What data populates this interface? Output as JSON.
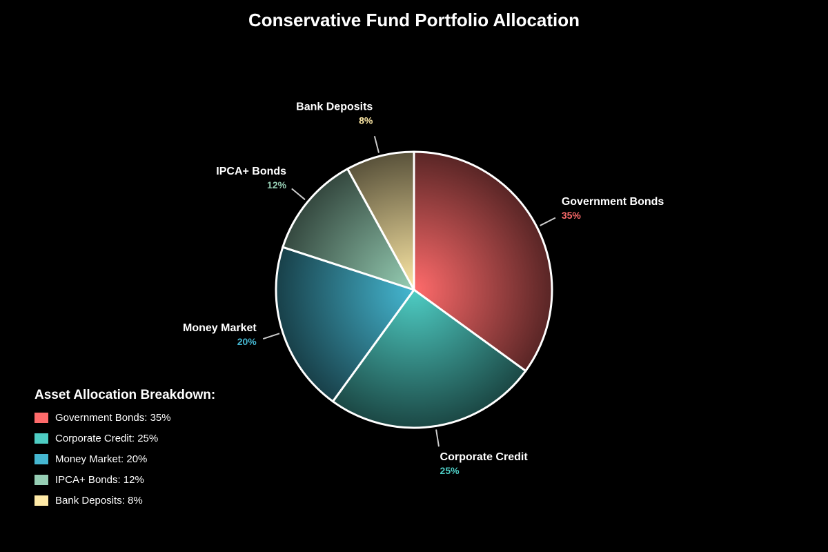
{
  "title": "Conservative Fund Portfolio Allocation",
  "legend": {
    "title": "Asset Allocation Breakdown:",
    "items": [
      {
        "label": "Government Bonds: 35%",
        "color": "#FF6B6B"
      },
      {
        "label": "Corporate Credit: 25%",
        "color": "#4ECDC4"
      },
      {
        "label": "Money Market: 20%",
        "color": "#45B7D1"
      },
      {
        "label": "IPCA+ Bonds: 12%",
        "color": "#96CEB4"
      },
      {
        "label": "Bank Deposits: 8%",
        "color": "#FFEAA7"
      }
    ]
  },
  "chart_data": {
    "type": "pie",
    "title": "Conservative Fund Portfolio Allocation",
    "categories": [
      "Government Bonds",
      "Corporate Credit",
      "Money Market",
      "IPCA+ Bonds",
      "Bank Deposits"
    ],
    "values": [
      35,
      25,
      20,
      12,
      8
    ],
    "labels": [
      "35%",
      "25%",
      "20%",
      "12%",
      "8%"
    ],
    "colors": [
      "#FF6B6B",
      "#4ECDC4",
      "#45B7D1",
      "#96CEB4",
      "#FFEAA7"
    ],
    "start_angle": "12 o'clock, clockwise",
    "legend_position": "bottom-left",
    "legend_title": "Asset Allocation Breakdown:"
  }
}
